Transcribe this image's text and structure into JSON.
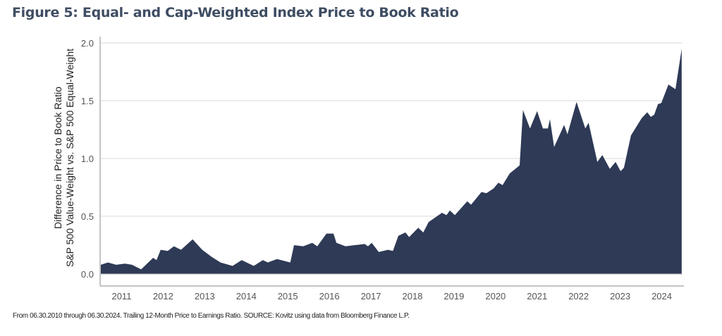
{
  "title": "Figure 5: Equal- and Cap-Weighted Index Price to Book Ratio",
  "footer": "From 06.30.2010 through 06.30.2024. Trailing 12-Month Price to Earnings Ratio. SOURCE: Kovitz using data from Bloomberg Finance L.P.",
  "chart_data": {
    "type": "area",
    "title": "Figure 5: Equal- and Cap-Weighted Index Price to Book Ratio",
    "ylabel_lines": [
      "Difference in Price to Book Ratio",
      "S&P 500 Value-Weight vs. S&P 500 Equal-Weight"
    ],
    "xlabel": "",
    "xlim": [
      2010.5,
      2024.5
    ],
    "ylim": [
      -0.1,
      2.0
    ],
    "x_ticks": [
      2011,
      2012,
      2013,
      2014,
      2015,
      2016,
      2017,
      2018,
      2019,
      2020,
      2021,
      2022,
      2023,
      2024
    ],
    "y_ticks": [
      "0.0",
      "0.5",
      "1.0",
      "1.5",
      "2.0"
    ],
    "grid": "horizontal",
    "fill_color": "#2e3a56",
    "x": [
      2010.5,
      2010.67,
      2010.87,
      2011.08,
      2011.25,
      2011.47,
      2011.76,
      2011.84,
      2011.94,
      2012.11,
      2012.26,
      2012.43,
      2012.71,
      2012.94,
      2013.16,
      2013.38,
      2013.67,
      2013.89,
      2014.18,
      2014.4,
      2014.52,
      2014.74,
      2015.06,
      2015.15,
      2015.37,
      2015.59,
      2015.71,
      2015.93,
      2016.1,
      2016.17,
      2016.39,
      2016.61,
      2016.85,
      2016.93,
      2017.02,
      2017.19,
      2017.41,
      2017.53,
      2017.66,
      2017.83,
      2017.92,
      2018.14,
      2018.26,
      2018.39,
      2018.71,
      2018.82,
      2018.9,
      2019.02,
      2019.32,
      2019.41,
      2019.66,
      2019.78,
      2019.95,
      2020.07,
      2020.17,
      2020.34,
      2020.58,
      2020.66,
      2020.83,
      2021.0,
      2021.14,
      2021.26,
      2021.31,
      2021.41,
      2021.65,
      2021.73,
      2021.95,
      2022.16,
      2022.24,
      2022.45,
      2022.57,
      2022.75,
      2022.89,
      2023.01,
      2023.09,
      2023.26,
      2023.52,
      2023.65,
      2023.74,
      2023.82,
      2023.91,
      2023.99,
      2024.16,
      2024.33,
      2024.48
    ],
    "y": [
      0.08,
      0.1,
      0.08,
      0.09,
      0.08,
      0.04,
      0.14,
      0.12,
      0.21,
      0.2,
      0.24,
      0.21,
      0.3,
      0.21,
      0.15,
      0.1,
      0.07,
      0.12,
      0.07,
      0.12,
      0.1,
      0.13,
      0.1,
      0.25,
      0.24,
      0.27,
      0.24,
      0.35,
      0.35,
      0.27,
      0.24,
      0.25,
      0.26,
      0.24,
      0.27,
      0.19,
      0.21,
      0.2,
      0.33,
      0.36,
      0.32,
      0.4,
      0.36,
      0.45,
      0.53,
      0.51,
      0.55,
      0.51,
      0.63,
      0.6,
      0.71,
      0.7,
      0.74,
      0.79,
      0.77,
      0.87,
      0.94,
      1.42,
      1.26,
      1.41,
      1.26,
      1.26,
      1.34,
      1.1,
      1.29,
      1.21,
      1.49,
      1.26,
      1.31,
      0.97,
      1.03,
      0.91,
      0.97,
      0.89,
      0.92,
      1.2,
      1.35,
      1.4,
      1.36,
      1.38,
      1.47,
      1.48,
      1.64,
      1.6,
      1.95
    ]
  }
}
